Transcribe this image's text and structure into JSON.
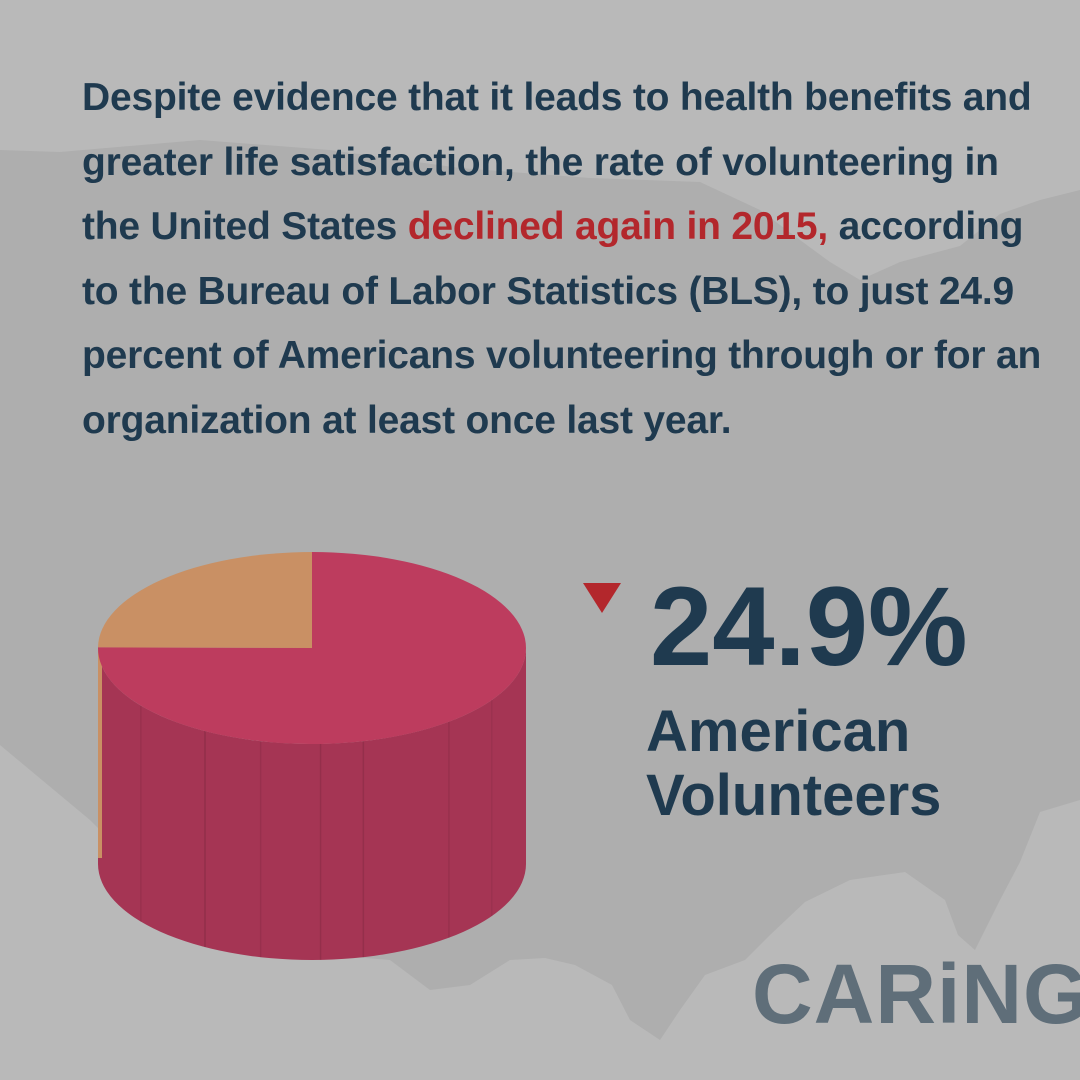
{
  "intro": {
    "before": "Despite evidence that it leads to health benefits and greater life satisfaction, the rate of volunteering in the United States ",
    "highlight": "declined again in 2015,",
    "after": " according to the Bureau of Labor Statistics (BLS), to just 24.9 percent of Americans volunteering through or for an organization at least once last year."
  },
  "stat": {
    "value": "24.9%",
    "label_line1": "American",
    "label_line2": "Volunteers",
    "trend": "down"
  },
  "brand": {
    "logo_text": "CARiNG"
  },
  "colors": {
    "background": "#b9b9b9",
    "map": "#aeaeae",
    "text": "#1f3a4f",
    "highlight": "#b3272c",
    "slice_main": "#bd3c5e",
    "slice_main_side": "#a53554",
    "slice_minor": "#c99064",
    "logo": "#5f6e79"
  },
  "chart_data": {
    "type": "pie",
    "slices": [
      {
        "value": 24.9,
        "color": "#c99064"
      },
      {
        "value": 75.1,
        "color": "#bd3c5e"
      }
    ]
  }
}
